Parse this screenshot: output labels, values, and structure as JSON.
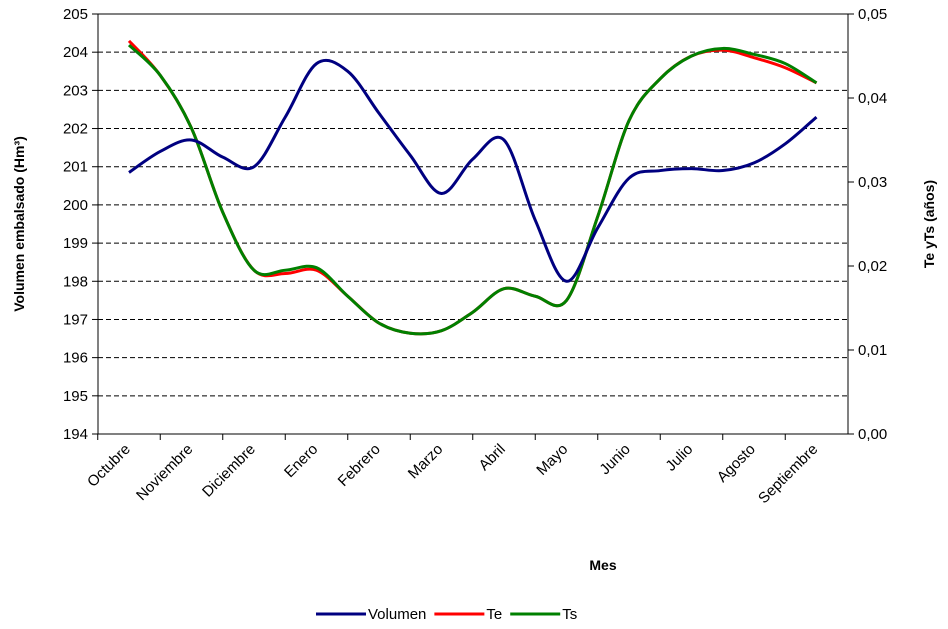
{
  "chart_data": {
    "type": "line",
    "x_label": "Mes",
    "y_label": "Volumen embalsado (Hm³)",
    "y2_label": "Te yTs (años)",
    "categories": [
      "Octubre",
      null,
      "Noviembre",
      null,
      "Diciembre",
      null,
      "Enero",
      null,
      "Febrero",
      null,
      "Marzo",
      null,
      "Abril",
      null,
      "Mayo",
      null,
      "Junio",
      null,
      "Julio",
      null,
      "Agosto",
      null,
      "Septiembre"
    ],
    "ylim": [
      194,
      205
    ],
    "yticks": [
      194,
      195,
      196,
      197,
      198,
      199,
      200,
      201,
      202,
      203,
      204,
      205
    ],
    "y2lim": [
      0,
      0.05
    ],
    "y2ticks": [
      {
        "value": 0,
        "label": "0,00"
      },
      {
        "value": 0.01,
        "label": "0,01"
      },
      {
        "value": 0.02,
        "label": "0,02"
      },
      {
        "value": 0.03,
        "label": "0,03"
      },
      {
        "value": 0.04,
        "label": "0,04"
      },
      {
        "value": 0.05,
        "label": "0,05"
      }
    ],
    "grid": true,
    "legend": "bottom",
    "series": [
      {
        "name": "Volumen",
        "color": "#000080",
        "axis": "y",
        "values": [
          200.85,
          201.4,
          201.7,
          201.25,
          201.0,
          202.3,
          203.7,
          203.5,
          202.4,
          201.3,
          200.3,
          201.2,
          201.7,
          199.6,
          198.0,
          199.4,
          200.7,
          200.9,
          200.95,
          200.9,
          201.1,
          201.6,
          202.3
        ]
      },
      {
        "name": "Te",
        "color": "#ff0000",
        "axis": "y2",
        "values": [
          0.0468,
          0.0427,
          0.0364,
          0.0264,
          0.0195,
          0.0191,
          0.0195,
          0.0164,
          0.0132,
          0.012,
          0.0123,
          0.0145,
          0.0173,
          0.0164,
          0.0159,
          0.0259,
          0.0373,
          0.0423,
          0.045,
          0.0457,
          0.0448,
          0.0436,
          0.0418
        ]
      },
      {
        "name": "Ts",
        "color": "#008000",
        "axis": "y2",
        "values": [
          0.0463,
          0.0427,
          0.0364,
          0.0264,
          0.0195,
          0.0195,
          0.0198,
          0.0164,
          0.0132,
          0.012,
          0.0123,
          0.0145,
          0.0173,
          0.0164,
          0.0159,
          0.0259,
          0.0373,
          0.0423,
          0.045,
          0.0459,
          0.0452,
          0.0441,
          0.0418
        ]
      }
    ]
  }
}
